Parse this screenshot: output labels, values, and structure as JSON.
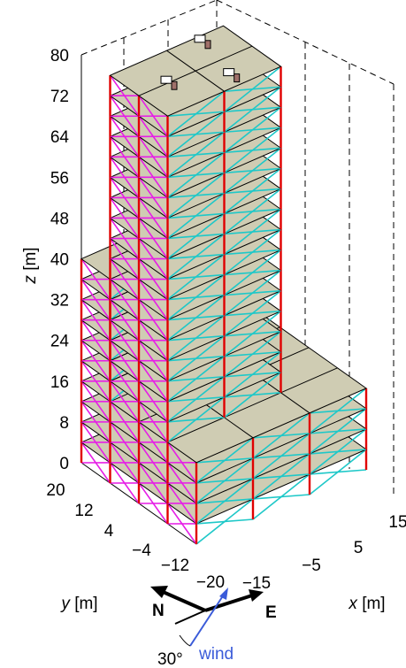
{
  "axes": {
    "z": {
      "variable": "z",
      "unit": "[m]",
      "ticks": [
        "0",
        "8",
        "16",
        "24",
        "32",
        "40",
        "48",
        "56",
        "64",
        "72",
        "80"
      ]
    },
    "y": {
      "variable": "y",
      "unit": "[m]",
      "ticks": [
        "20",
        "12",
        "4",
        "−4",
        "−12",
        "−20"
      ]
    },
    "x": {
      "variable": "x",
      "unit": "[m]",
      "ticks": [
        "−15",
        "−5",
        "5",
        "15"
      ]
    }
  },
  "compass": {
    "north": "N",
    "east": "E",
    "wind": "wind",
    "angle": "30°"
  }
}
